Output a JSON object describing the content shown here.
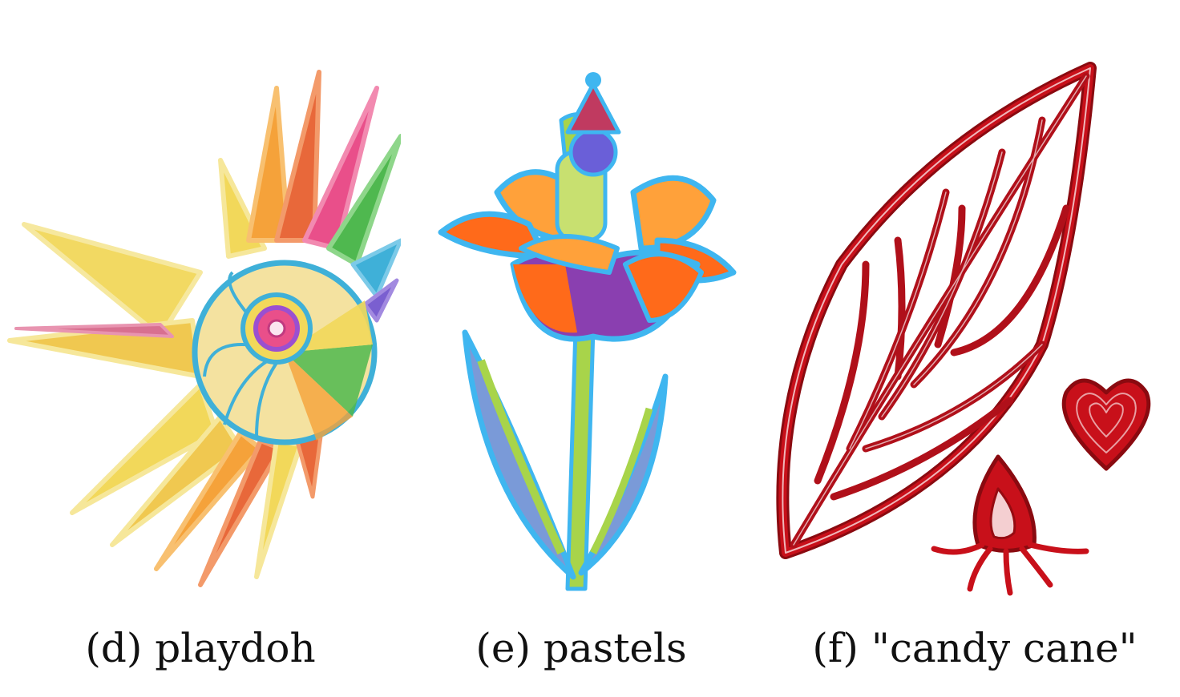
{
  "panels": [
    {
      "caption": "(d) playdoh",
      "illustration": "sun-illustration"
    },
    {
      "caption": "(e) pastels",
      "illustration": "flower-illustration"
    },
    {
      "caption": "(f) \"candy cane\"",
      "illustration": "leaf-heart-illustration"
    }
  ],
  "colors": {
    "playdoh": [
      "#f2d85a",
      "#f5a23a",
      "#e8683a",
      "#e94f8a",
      "#4fb84f",
      "#3fb0d8",
      "#9b4fd0"
    ],
    "pastels": [
      "#ff6a1a",
      "#ffa13a",
      "#3fb6f0",
      "#a8d44a",
      "#8a3fb0",
      "#3a5fd8"
    ],
    "candy_cane": [
      "#c8101a",
      "#8a0a10",
      "#ffffff"
    ]
  }
}
